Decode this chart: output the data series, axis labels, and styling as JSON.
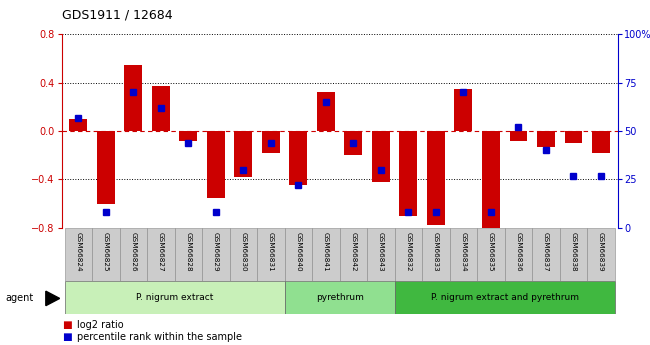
{
  "title": "GDS1911 / 12684",
  "samples": [
    "GSM66824",
    "GSM66825",
    "GSM66826",
    "GSM66827",
    "GSM66828",
    "GSM66829",
    "GSM66830",
    "GSM66831",
    "GSM66840",
    "GSM66841",
    "GSM66842",
    "GSM66843",
    "GSM66832",
    "GSM66833",
    "GSM66834",
    "GSM66835",
    "GSM66836",
    "GSM66837",
    "GSM66838",
    "GSM66839"
  ],
  "log2_ratio": [
    0.1,
    -0.6,
    0.55,
    0.37,
    -0.08,
    -0.55,
    -0.38,
    -0.18,
    -0.45,
    0.32,
    -0.2,
    -0.42,
    -0.7,
    -0.78,
    0.35,
    -0.8,
    -0.08,
    -0.13,
    -0.1,
    -0.18
  ],
  "percentile": [
    57,
    8,
    70,
    62,
    44,
    8,
    30,
    44,
    22,
    65,
    44,
    30,
    8,
    8,
    70,
    8,
    52,
    40,
    27,
    27
  ],
  "groups": [
    {
      "label": "P. nigrum extract",
      "start": 0,
      "end": 8,
      "color": "#c8f0b8"
    },
    {
      "label": "pyrethrum",
      "start": 8,
      "end": 12,
      "color": "#90e090"
    },
    {
      "label": "P. nigrum extract and pyrethrum",
      "start": 12,
      "end": 20,
      "color": "#40b840"
    }
  ],
  "bar_color": "#cc0000",
  "dot_color": "#0000cc",
  "ylim_left": [
    -0.8,
    0.8
  ],
  "ylim_right": [
    0,
    100
  ],
  "yticks_left": [
    -0.8,
    -0.4,
    0.0,
    0.4,
    0.8
  ],
  "yticks_right": [
    0,
    25,
    50,
    75,
    100
  ],
  "hline_color": "#cc0000",
  "grid_color": "#000000",
  "bg_color": "#ffffff"
}
